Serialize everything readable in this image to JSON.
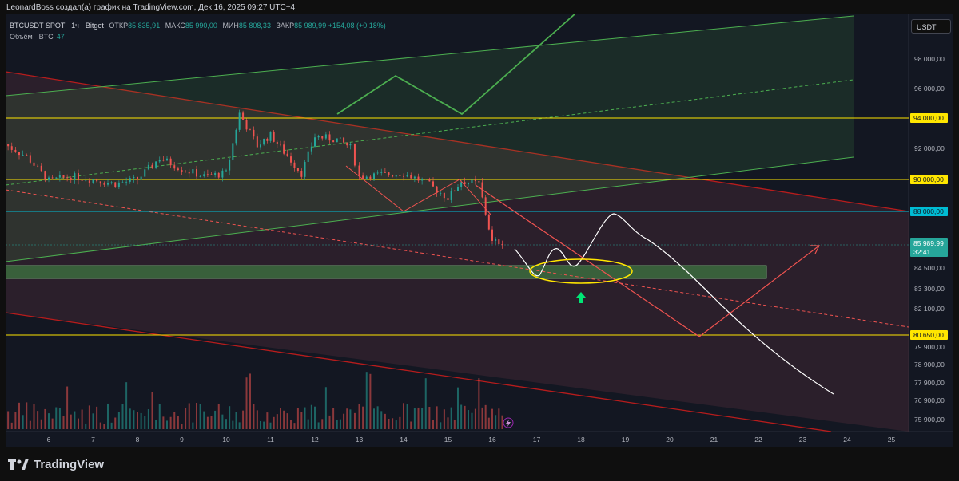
{
  "header": {
    "credit": "LeonardBoss создал(а) график на TradingView.com, Дек 16, 2025 09:27 UTC+4"
  },
  "legend": {
    "symbol": "BTCUSDT SPOT · 1ч · Bitget",
    "open_label": "ОТКР",
    "open": "85 835,91",
    "high_label": "МАКС",
    "high": "85 990,00",
    "low_label": "МИН",
    "low": "85 808,33",
    "close_label": "ЗАКР",
    "close": "85 989,99",
    "change": "+154,08 (+0,18%)",
    "volume_label": "Объём · BTC",
    "volume": "47"
  },
  "currency": "USDT",
  "footer": {
    "brand": "TradingView"
  },
  "colors": {
    "background": "#131722",
    "up": "#26a69a",
    "down": "#ef5350",
    "level_yellow": "#ffe600",
    "level_cyan": "#00bcd4",
    "zone_green": "#4caf50",
    "channel_red": "#b71c1c"
  },
  "chart_data": {
    "type": "line",
    "title": "BTCUSDT SPOT · 1ч · Bitget",
    "y_axis_ticks": [
      "98 000,00",
      "96 000,00",
      "92 000,00",
      "84 500,00",
      "83 300,00",
      "82 100,00",
      "80 650,00",
      "79 900,00",
      "78 900,00",
      "77 900,00",
      "76 900,00",
      "75 900,00"
    ],
    "x_axis_ticks": [
      "6",
      "7",
      "8",
      "9",
      "10",
      "11",
      "12",
      "13",
      "14",
      "15",
      "16",
      "17",
      "18",
      "19",
      "20",
      "21",
      "22",
      "23",
      "24",
      "25"
    ],
    "horizontal_levels": [
      {
        "price": 94000,
        "label": "94 000,00",
        "color": "#ffe600"
      },
      {
        "price": 90000,
        "label": "90 000,00",
        "color": "#ffe600"
      },
      {
        "price": 88000,
        "label": "88 000,00",
        "color": "#00bcd4"
      },
      {
        "price": 80650,
        "label": "80 650,00",
        "color": "#ffe600"
      }
    ],
    "last_price": {
      "value": "85 989,99",
      "countdown": "32:41"
    },
    "series": [
      {
        "x": [
          "5",
          "5.5",
          "6",
          "6.5",
          "7",
          "7.5",
          "8",
          "8.5",
          "9",
          "9.5",
          "10",
          "10.3",
          "10.7",
          "11",
          "11.3",
          "11.7",
          "12",
          "12.5",
          "12.8",
          "13",
          "13.5",
          "14",
          "14.5",
          "15",
          "15.3",
          "15.7",
          "16",
          "16.3"
        ],
        "values": [
          92300,
          91500,
          89900,
          90200,
          90000,
          89700,
          90000,
          91400,
          90700,
          90200,
          90400,
          94300,
          92200,
          92900,
          91800,
          90400,
          92800,
          92600,
          92100,
          90200,
          90300,
          90400,
          89800,
          88800,
          89900,
          89700,
          85900,
          85990
        ]
      }
    ],
    "volume_note": "Объём · BTC 47",
    "annotations": []
  }
}
